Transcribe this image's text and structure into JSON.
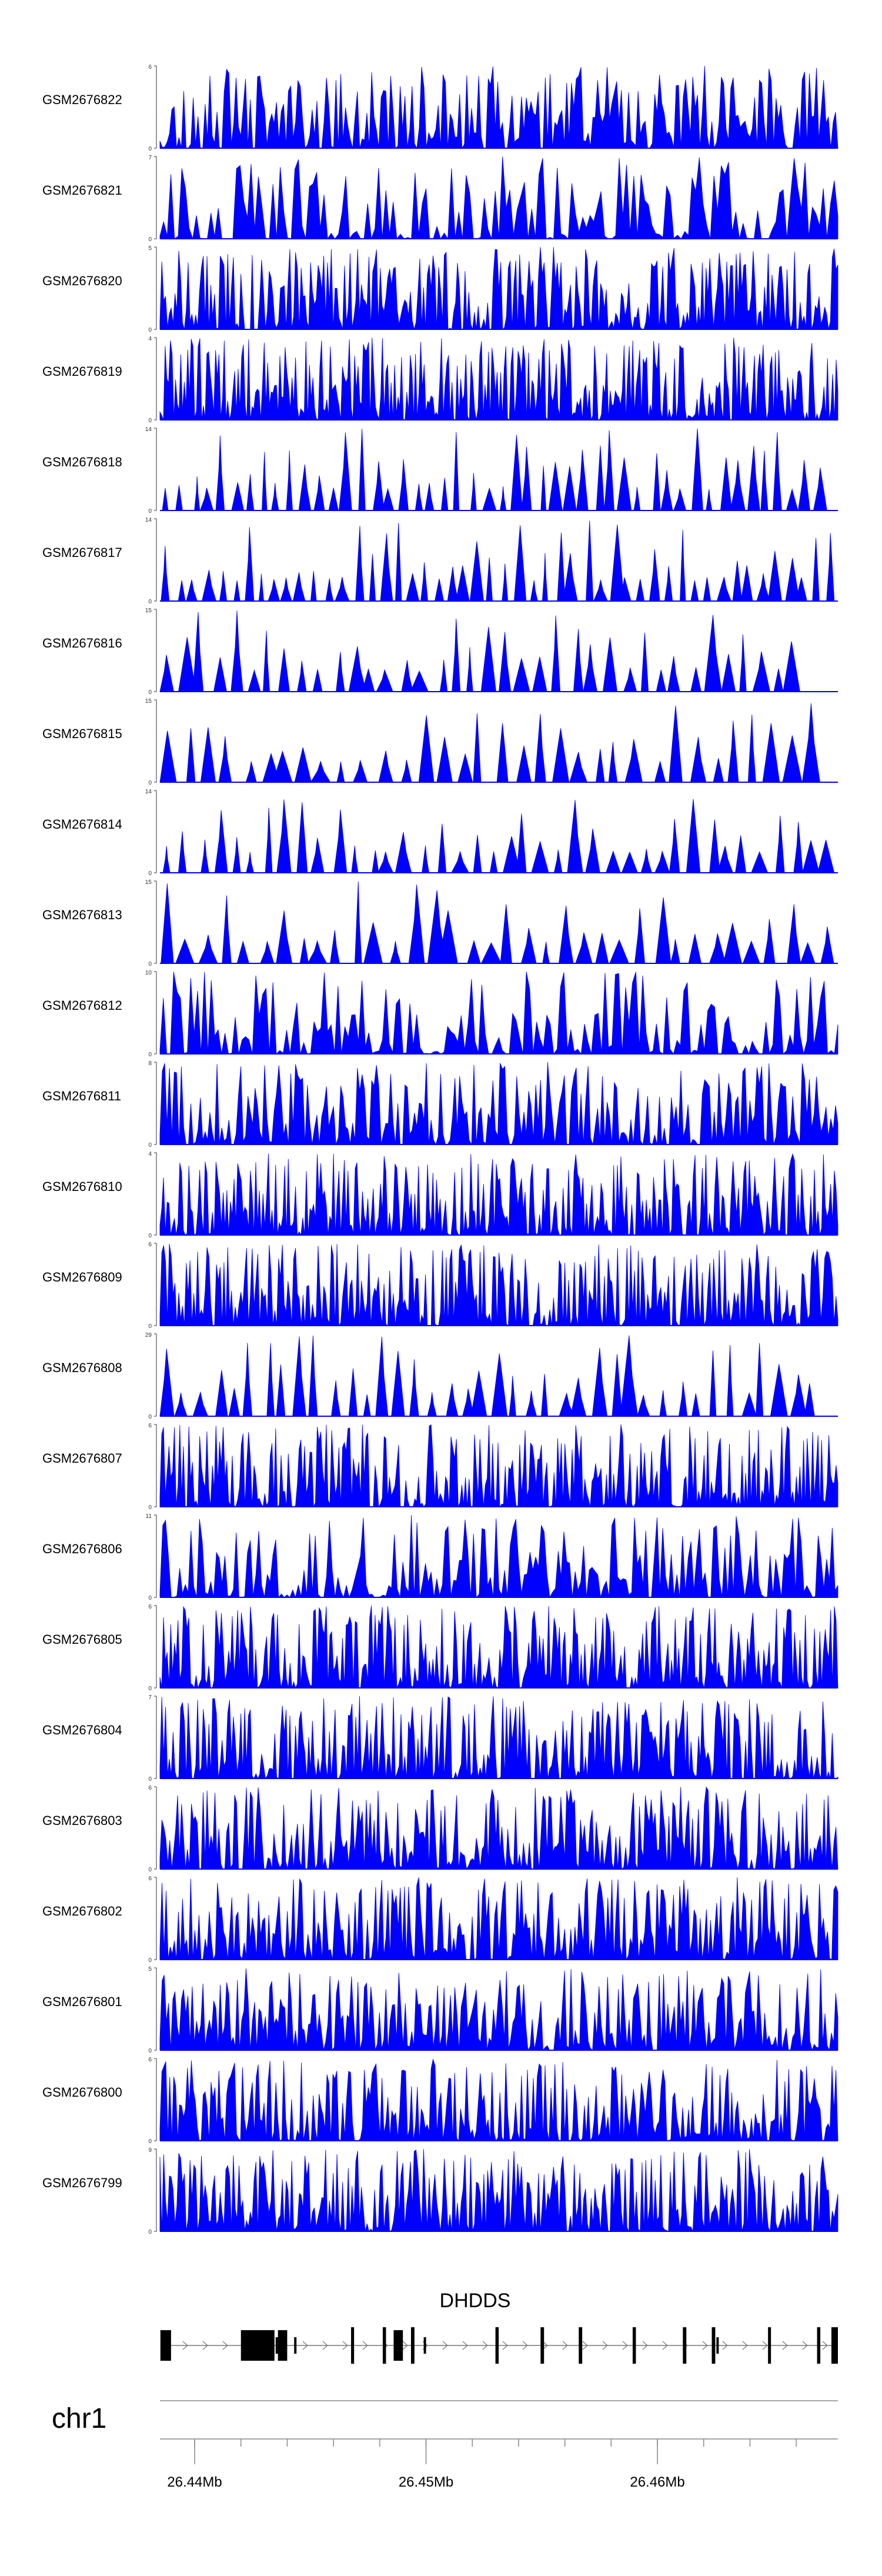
{
  "chart_data": {
    "type": "area",
    "title": "",
    "fill_color": "#0000ff",
    "region": {
      "start": 26436500,
      "end": 26465800
    },
    "chromosome": "chr1",
    "gene": {
      "name": "DHDDS",
      "strand": "+",
      "exons": [
        [
          26436520,
          26436980
        ],
        [
          26440000,
          26441450
        ],
        [
          26441600,
          26442000
        ],
        [
          26444760,
          26444890
        ],
        [
          26446130,
          26446270
        ],
        [
          26446600,
          26447000
        ],
        [
          26447350,
          26447500
        ],
        [
          26451000,
          26451140
        ],
        [
          26452950,
          26453100
        ],
        [
          26454600,
          26454750
        ],
        [
          26456930,
          26457070
        ],
        [
          26459100,
          26459250
        ],
        [
          26460350,
          26460500
        ],
        [
          26462780,
          26462900
        ],
        [
          26464900,
          26465040
        ],
        [
          26465520,
          26465800
        ]
      ],
      "narrow_exons": [
        [
          26441500,
          26441560
        ],
        [
          26442300,
          26442360
        ],
        [
          26447900,
          26447970
        ],
        [
          26460550,
          26460610
        ]
      ]
    },
    "axis": {
      "ticks": [
        26438000,
        26440000,
        26442000,
        26444000,
        26446000,
        26448000,
        26450000,
        26452000,
        26454000,
        26456000,
        26458000,
        26460000,
        26462000,
        26464000
      ],
      "labeled_ticks": [
        {
          "value": 26438000,
          "label": "26.44Mb"
        },
        {
          "value": 26448000,
          "label": "26.45Mb"
        },
        {
          "value": 26458000,
          "label": "26.46Mb"
        }
      ]
    },
    "series": [
      {
        "name": "GSM2676822",
        "ymax": 6,
        "ymin": 0,
        "seed": 11,
        "peaks": 95,
        "density": "dense",
        "coverage_end": 1.0
      },
      {
        "name": "GSM2676821",
        "ymax": 7,
        "ymin": 0,
        "seed": 23,
        "peaks": 62,
        "density": "medium",
        "coverage_end": 1.0
      },
      {
        "name": "GSM2676820",
        "ymax": 5,
        "ymin": 0,
        "seed": 37,
        "peaks": 120,
        "density": "dense",
        "coverage_end": 1.0
      },
      {
        "name": "GSM2676819",
        "ymax": 4,
        "ymin": 0,
        "seed": 41,
        "peaks": 130,
        "density": "dense",
        "coverage_end": 1.0
      },
      {
        "name": "GSM2676818",
        "ymax": 14,
        "ymin": 0,
        "seed": 53,
        "peaks": 48,
        "density": "sparse",
        "coverage_end": 0.985
      },
      {
        "name": "GSM2676817",
        "ymax": 14,
        "ymin": 0,
        "seed": 67,
        "peaks": 50,
        "density": "sparse",
        "coverage_end": 1.0
      },
      {
        "name": "GSM2676816",
        "ymax": 15,
        "ymin": 0,
        "seed": 71,
        "peaks": 38,
        "density": "sparse",
        "coverage_end": 0.95
      },
      {
        "name": "GSM2676815",
        "ymax": 15,
        "ymin": 0,
        "seed": 83,
        "peaks": 34,
        "density": "sparse",
        "coverage_end": 0.975
      },
      {
        "name": "GSM2676814",
        "ymax": 14,
        "ymin": 0,
        "seed": 97,
        "peaks": 40,
        "density": "sparse",
        "coverage_end": 1.0
      },
      {
        "name": "GSM2676813",
        "ymax": 15,
        "ymin": 0,
        "seed": 101,
        "peaks": 36,
        "density": "sparse",
        "coverage_end": 1.0
      },
      {
        "name": "GSM2676812",
        "ymax": 10,
        "ymin": 0,
        "seed": 113,
        "peaks": 66,
        "density": "medium",
        "coverage_end": 1.0
      },
      {
        "name": "GSM2676811",
        "ymax": 8,
        "ymin": 0,
        "seed": 127,
        "peaks": 95,
        "density": "dense",
        "coverage_end": 1.0
      },
      {
        "name": "GSM2676810",
        "ymax": 4,
        "ymin": 0,
        "seed": 131,
        "peaks": 125,
        "density": "dense",
        "coverage_end": 1.0
      },
      {
        "name": "GSM2676809",
        "ymax": 6,
        "ymin": 0,
        "seed": 139,
        "peaks": 120,
        "density": "dense",
        "coverage_end": 1.0
      },
      {
        "name": "GSM2676808",
        "ymax": 29,
        "ymin": 0,
        "seed": 149,
        "peaks": 40,
        "density": "sparse",
        "coverage_end": 0.975
      },
      {
        "name": "GSM2676807",
        "ymax": 6,
        "ymin": 0,
        "seed": 151,
        "peaks": 125,
        "density": "dense",
        "coverage_end": 1.0
      },
      {
        "name": "GSM2676806",
        "ymax": 11,
        "ymin": 0,
        "seed": 163,
        "peaks": 80,
        "density": "medium",
        "coverage_end": 1.0
      },
      {
        "name": "GSM2676805",
        "ymax": 6,
        "ymin": 0,
        "seed": 173,
        "peaks": 125,
        "density": "dense",
        "coverage_end": 1.0
      },
      {
        "name": "GSM2676804",
        "ymax": 7,
        "ymin": 0,
        "seed": 181,
        "peaks": 120,
        "density": "dense",
        "coverage_end": 1.0
      },
      {
        "name": "GSM2676803",
        "ymax": 6,
        "ymin": 0,
        "seed": 191,
        "peaks": 115,
        "density": "dense",
        "coverage_end": 1.0
      },
      {
        "name": "GSM2676802",
        "ymax": 6,
        "ymin": 0,
        "seed": 197,
        "peaks": 110,
        "density": "dense",
        "coverage_end": 1.0
      },
      {
        "name": "GSM2676801",
        "ymax": 5,
        "ymin": 0,
        "seed": 211,
        "peaks": 105,
        "density": "dense",
        "coverage_end": 1.0
      },
      {
        "name": "GSM2676800",
        "ymax": 6,
        "ymin": 0,
        "seed": 223,
        "peaks": 115,
        "density": "dense",
        "coverage_end": 1.0
      },
      {
        "name": "GSM2676799",
        "ymax": 9,
        "ymin": 0,
        "seed": 229,
        "peaks": 120,
        "density": "dense",
        "coverage_end": 1.0
      }
    ]
  }
}
